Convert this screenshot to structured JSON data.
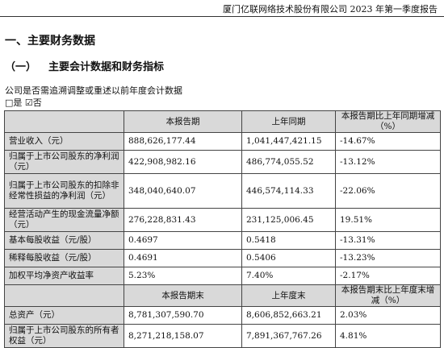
{
  "header": {
    "text": "厦门亿联网络技术股份有限公司 2023 年第一季度报告"
  },
  "section": {
    "title": "一、主要财务数据"
  },
  "subsection": {
    "number": "（一）",
    "title": "主要会计数据和财务指标"
  },
  "adjustment": {
    "question": "公司是否需追溯调整或重述以前年度会计数据",
    "answer": "□是 ☑否"
  },
  "table": {
    "headers1": [
      "",
      "本报告期",
      "上年同期",
      "本报告期比上年同期增减（%）"
    ],
    "rows1": [
      {
        "label": "营业收入（元）",
        "current": "888,626,177.44",
        "prior": "1,041,447,421.15",
        "change": "-14.67%"
      },
      {
        "label": "归属于上市公司股东的净利润（元）",
        "current": "422,908,982.16",
        "prior": "486,774,055.52",
        "change": "-13.12%"
      },
      {
        "label": "归属于上市公司股东的扣除非经常性损益的净利润（元）",
        "current": "348,040,640.07",
        "prior": "446,574,114.33",
        "change": "-22.06%"
      },
      {
        "label": "经营活动产生的现金流量净额（元）",
        "current": "276,228,831.43",
        "prior": "231,125,006.45",
        "change": "19.51%"
      },
      {
        "label": "基本每股收益（元/股）",
        "current": "0.4697",
        "prior": "0.5418",
        "change": "-13.31%"
      },
      {
        "label": "稀释每股收益（元/股）",
        "current": "0.4691",
        "prior": "0.5406",
        "change": "-13.23%"
      },
      {
        "label": "加权平均净资产收益率",
        "current": "5.23%",
        "prior": "7.40%",
        "change": "-2.17%"
      }
    ],
    "headers2": [
      "",
      "本报告期末",
      "上年度末",
      "本报告期末比上年度末增减（%）"
    ],
    "rows2": [
      {
        "label": "总资产（元）",
        "current": "8,781,307,590.70",
        "prior": "8,606,852,663.21",
        "change": "2.03%"
      },
      {
        "label": "归属于上市公司股东的所有者权益（元）",
        "current": "8,271,218,158.07",
        "prior": "7,891,367,767.26",
        "change": "4.81%"
      }
    ]
  }
}
